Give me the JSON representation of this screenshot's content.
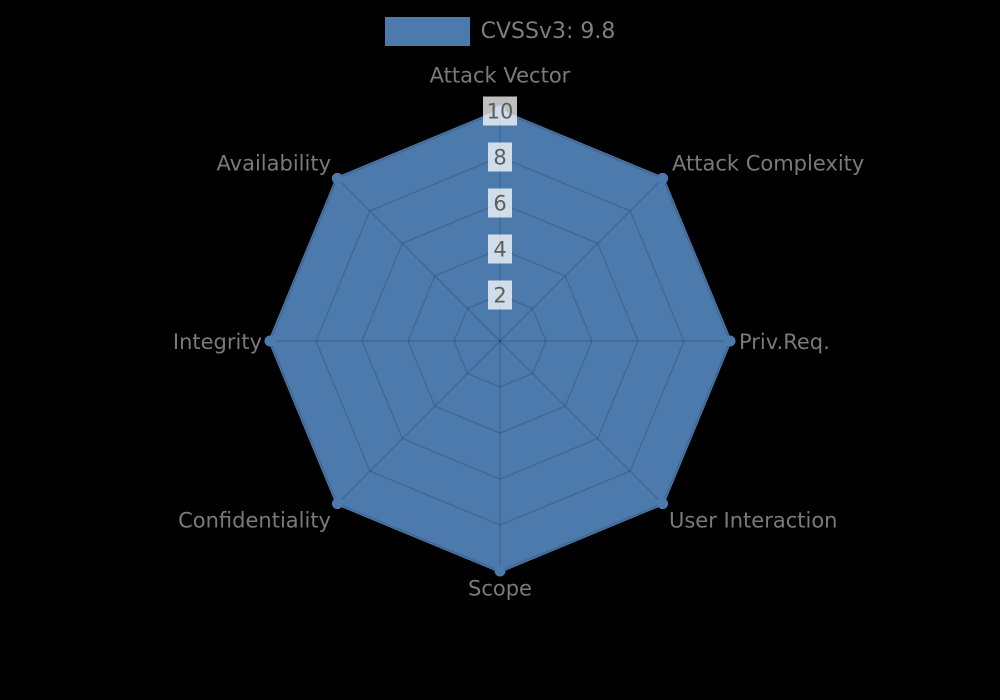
{
  "page": {
    "background": "#000000"
  },
  "legend": {
    "label": "CVSSv3: 9.8",
    "swatch_color": "#4c7aac",
    "text_color": "#7e7e7e"
  },
  "chart_data": {
    "type": "radar",
    "title": "",
    "categories": [
      "Attack Vector",
      "Attack Complexity",
      "Priv.Req.",
      "User Interaction",
      "Scope",
      "Confidentiality",
      "Integrity",
      "Availability"
    ],
    "series": [
      {
        "name": "CVSSv3: 9.8",
        "values": [
          10,
          10,
          10,
          10,
          10,
          10,
          10,
          10
        ],
        "fill_color": "#4c7aac",
        "line_color": "#4c7aac",
        "marker_color": "#4c7aac"
      }
    ],
    "radial_ticks": [
      "2",
      "4",
      "6",
      "8",
      "10"
    ],
    "radial_tick_values": [
      2,
      4,
      6,
      8,
      10
    ],
    "rlim": [
      0,
      10
    ],
    "grid": true,
    "grid_shape": "polygon",
    "grid_color": "rgba(0,0,0,0.16)",
    "axis_label_color": "#7a7a7a",
    "tick_label_color": "#5d5d5d",
    "tick_backdrop_color": "rgba(255,255,255,0.75)",
    "legend_position": "top"
  }
}
